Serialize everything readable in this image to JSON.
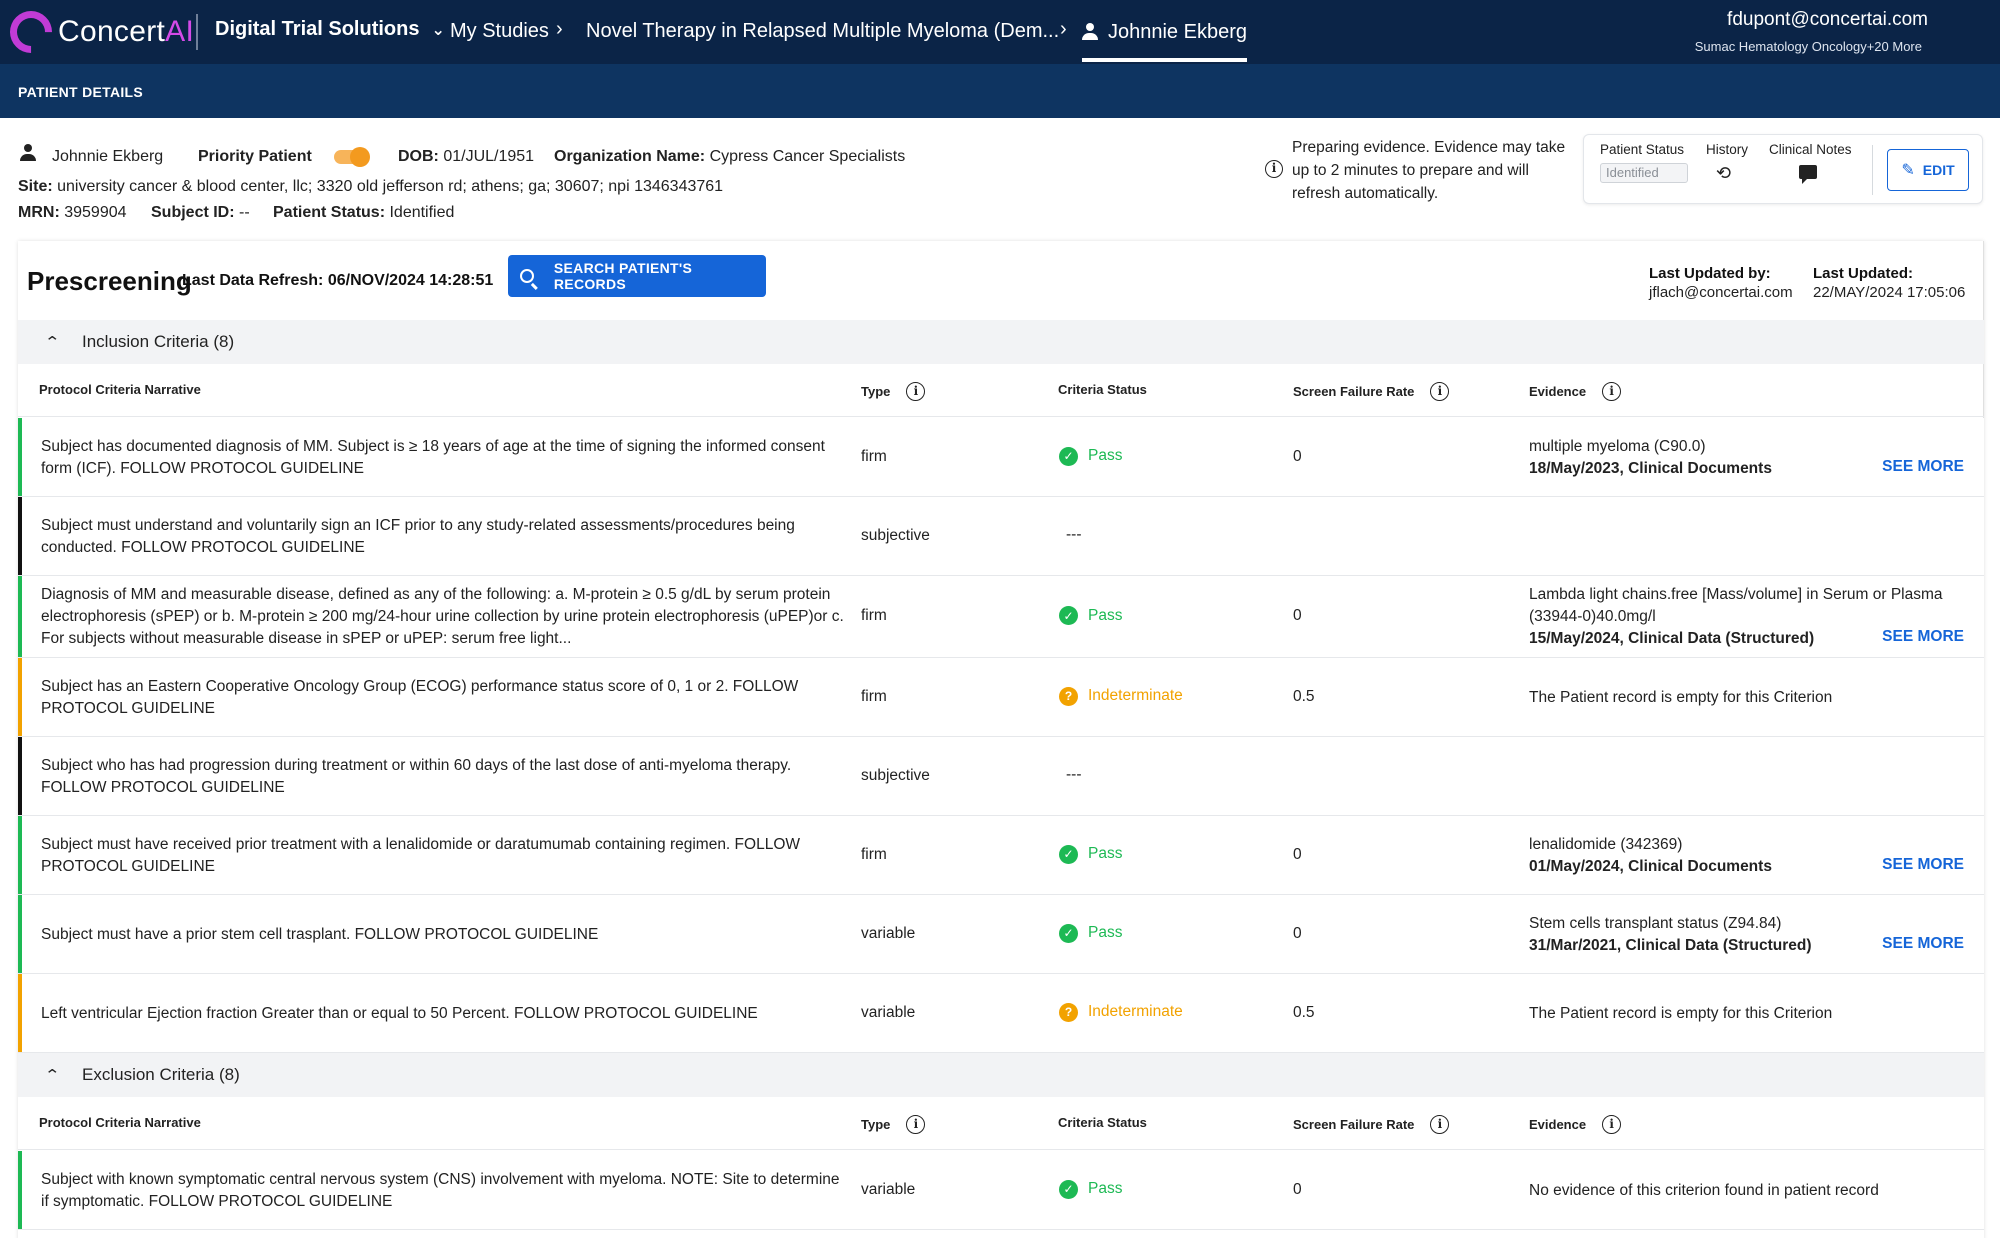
{
  "header": {
    "brand": "Concert",
    "brand_ai": "AI",
    "product": "Digital Trial Solutions",
    "breadcrumbs": [
      "My Studies",
      "Novel Therapy in Relapsed Multiple Myeloma (Dem...",
      "Johnnie Ekberg"
    ],
    "user_email": "fdupont@concertai.com",
    "user_org": "Sumac Hematology Oncology+20 More",
    "accent_color": "#0b2447"
  },
  "subnav": {
    "tab": "PATIENT DETAILS"
  },
  "patient": {
    "name": "Johnnie Ekberg",
    "priority_label": "Priority Patient",
    "dob_label": "DOB:",
    "dob": "01/JUL/1951",
    "org_label": "Organization Name:",
    "org": "Cypress Cancer Specialists",
    "site_label": "Site:",
    "site": "university cancer & blood center, llc; 3320 old jefferson rd; athens; ga; 30607; npi 1346343761",
    "mrn_label": "MRN:",
    "mrn": "3959904",
    "subject_label": "Subject ID:",
    "subject": "--",
    "status_label": "Patient Status:",
    "status": "Identified"
  },
  "evidence_notice": "Preparing evidence. Evidence may take up to 2 minutes to prepare and will refresh automatically.",
  "status_card": {
    "status_label": "Patient Status",
    "status_value": "Identified",
    "history_label": "History",
    "notes_label": "Clinical Notes",
    "edit_label": "EDIT"
  },
  "prescreening": {
    "title": "Prescreening",
    "refresh": "Last Data Refresh: 06/NOV/2024 14:28:51",
    "search_label": "SEARCH PATIENT'S RECORDS",
    "updated_by_label": "Last Updated by:",
    "updated_by": "jflach@concertai.com",
    "updated_label": "Last Updated:",
    "updated": "22/MAY/2024 17:05:06"
  },
  "columns": {
    "narrative": "Protocol Criteria Narrative",
    "type": "Type",
    "status": "Criteria Status",
    "sfr": "Screen Failure Rate",
    "evidence": "Evidence"
  },
  "inclusion": {
    "title": "Inclusion Criteria (8)",
    "rows": [
      {
        "narrative": "Subject has documented diagnosis of MM. Subject is ≥ 18 years of age at the time of signing the informed consent form (ICF). FOLLOW PROTOCOL GUIDELINE",
        "type": "firm",
        "status": "Pass",
        "sfr": "0",
        "ev1": "multiple myeloma (C90.0)",
        "ev2": "18/May/2023, Clinical Documents",
        "see": "SEE MORE"
      },
      {
        "narrative": "Subject must understand and voluntarily sign an ICF prior to any study-related assessments/procedures being conducted. FOLLOW PROTOCOL GUIDELINE",
        "type": "subjective",
        "status": "---",
        "sfr": "",
        "ev1": "",
        "ev2": "",
        "see": ""
      },
      {
        "narrative": "Diagnosis of MM and measurable disease, defined as any of the following: a. M-protein ≥ 0.5 g/dL by serum protein electrophoresis (sPEP) or b. M-protein ≥ 200 mg/24-hour urine collection by urine protein electrophoresis (uPEP)or c. For subjects without measurable disease in sPEP or uPEP: serum free light...",
        "type": "firm",
        "status": "Pass",
        "sfr": "0",
        "ev1": "Lambda light chains.free [Mass/volume] in Serum or Plasma (33944-0)40.0mg/l",
        "ev2": "15/May/2024, Clinical Data (Structured)",
        "see": "SEE MORE"
      },
      {
        "narrative": "Subject has an Eastern Cooperative Oncology Group (ECOG) performance status score of 0, 1 or 2. FOLLOW PROTOCOL GUIDELINE",
        "type": "firm",
        "status": "Indeterminate",
        "sfr": "0.5",
        "ev1": "The Patient record is empty for this Criterion",
        "ev2": "",
        "see": ""
      },
      {
        "narrative": "Subject who has had progression during treatment or within 60 days of the last dose of anti-myeloma therapy. FOLLOW PROTOCOL GUIDELINE",
        "type": "subjective",
        "status": "---",
        "sfr": "",
        "ev1": "",
        "ev2": "",
        "see": ""
      },
      {
        "narrative": "Subject must have received prior treatment with a lenalidomide or daratumumab containing regimen. FOLLOW PROTOCOL GUIDELINE",
        "type": "firm",
        "status": "Pass",
        "sfr": "0",
        "ev1": "lenalidomide (342369)",
        "ev2": "01/May/2024, Clinical Documents",
        "see": "SEE MORE"
      },
      {
        "narrative": "Subject must have a prior stem cell trasplant. FOLLOW PROTOCOL GUIDELINE",
        "type": "variable",
        "status": "Pass",
        "sfr": "0",
        "ev1": "Stem cells transplant status (Z94.84)",
        "ev2": "31/Mar/2021, Clinical Data (Structured)",
        "see": "SEE MORE"
      },
      {
        "narrative": "Left ventricular Ejection fraction Greater than or equal to 50 Percent. FOLLOW PROTOCOL GUIDELINE",
        "type": "variable",
        "status": "Indeterminate",
        "sfr": "0.5",
        "ev1": "The Patient record is empty for this Criterion",
        "ev2": "",
        "see": ""
      }
    ]
  },
  "exclusion": {
    "title": "Exclusion Criteria (8)",
    "rows": [
      {
        "narrative": "Subject with known symptomatic central nervous system (CNS) involvement with myeloma. NOTE: Site to determine if symptomatic. FOLLOW PROTOCOL GUIDELINE",
        "type": "variable",
        "status": "Pass",
        "sfr": "0",
        "ev1": "No evidence of this criterion found in patient record",
        "ev2": "",
        "see": ""
      }
    ]
  },
  "colors": {
    "pass": "#1db954",
    "indeterminate": "#f2a200",
    "subjective": "#111111",
    "link": "#1565d8"
  }
}
